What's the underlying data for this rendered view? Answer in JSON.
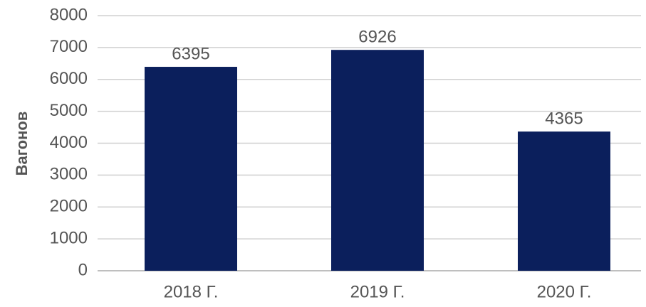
{
  "chart_data": {
    "type": "bar",
    "ylabel": "Вагонов",
    "categories": [
      "2018 Г.",
      "2019 Г.",
      "2020 Г."
    ],
    "values": [
      6395,
      6926,
      4365
    ],
    "color": "#0b1f5c",
    "ylim": [
      0,
      8000
    ],
    "yticks": [
      0,
      1000,
      2000,
      3000,
      4000,
      5000,
      6000,
      7000,
      8000
    ],
    "grid": true
  }
}
